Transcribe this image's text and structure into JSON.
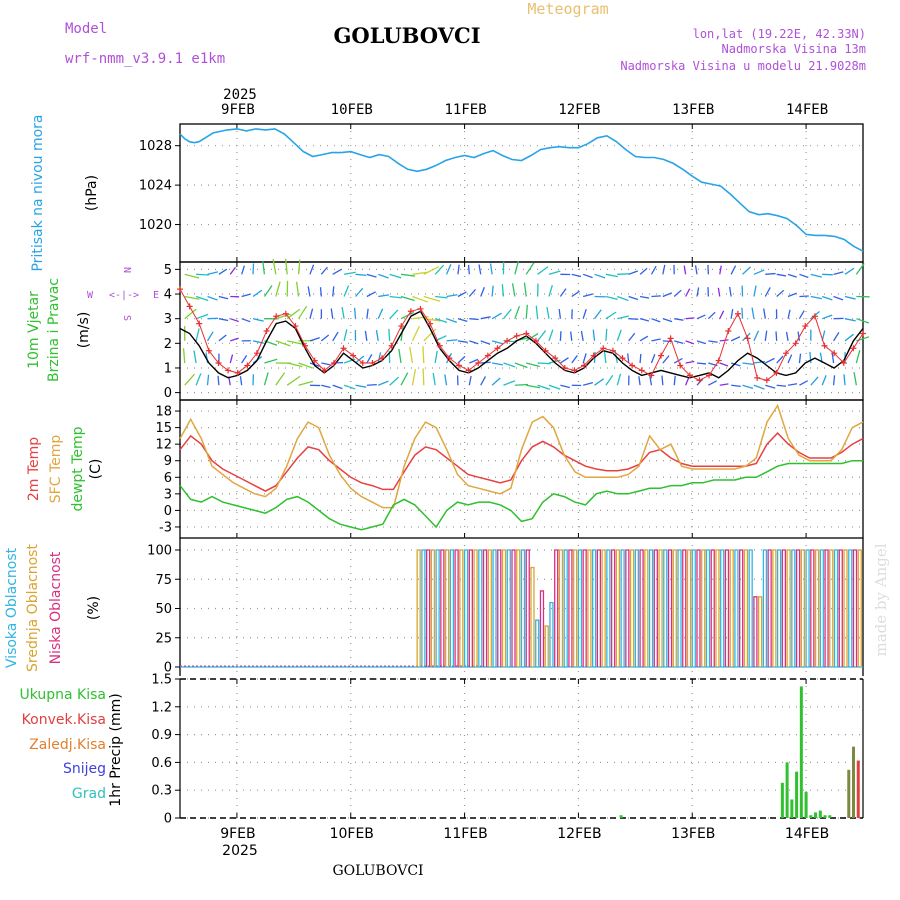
{
  "header": {
    "model_label": "Model",
    "model_name": "wrf-nmm_v3.9.1 e1km",
    "location": "GOLUBOVCI",
    "product": "Meteogram",
    "coords": "lon,lat (19.22E, 42.33N)",
    "elevation": "Nadmorska Visina 13m",
    "model_elevation": "Nadmorska Visina u modelu 21.9028m",
    "year": "2025",
    "footer_location": "GOLUBOVCI",
    "watermark": "made by Angel"
  },
  "colors": {
    "pressure": "#29a3e8",
    "temp_2m": "#e84040",
    "temp_sfc": "#e0a640",
    "dewpoint": "#2ec02e",
    "wind_obs": "#e83030",
    "wind_line": "#000000",
    "cloud_high": "#33b3e0",
    "cloud_mid": "#d9a430",
    "cloud_low": "#d83080",
    "precip_total": "#30c030",
    "precip_conv": "#e04040",
    "precip_frozen": "#e08030",
    "precip_snow": "#4040e0",
    "precip_grad": "#30c0c0",
    "purple_text": "#b050d8",
    "orange_text": "#e8c070",
    "panel_pressure_label": "#29a3e8",
    "panel_wind_label": "#30c030"
  },
  "chart_data": [
    {
      "type": "line",
      "panel": "pressure",
      "ylabel": "Pritisak na nivou mora",
      "unit": "(hPa)",
      "yticks": [
        "1028",
        "1024",
        "1020"
      ],
      "ylim": [
        1016.2,
        1030.2
      ],
      "x_unit": "hours since 8FEB 12:00",
      "x": [
        0,
        1,
        2,
        3,
        4,
        5,
        6,
        7,
        8,
        10,
        12,
        14,
        16,
        18,
        20,
        22,
        24,
        26,
        28,
        30,
        32,
        34,
        36,
        38,
        40,
        42,
        44,
        46,
        48,
        50,
        52,
        54,
        56,
        58,
        60,
        62,
        64,
        66,
        68,
        70,
        72,
        74,
        76,
        78,
        80,
        82,
        84,
        86,
        88,
        90,
        92,
        94,
        96,
        98,
        100,
        102,
        104,
        106,
        108,
        110,
        112,
        114,
        116,
        118,
        120,
        122,
        124,
        126,
        128,
        130,
        132,
        134,
        136,
        138,
        140,
        142,
        144
      ],
      "values": [
        1029.2,
        1028.7,
        1028.4,
        1028.3,
        1028.4,
        1028.7,
        1029.0,
        1029.3,
        1029.4,
        1029.6,
        1029.7,
        1029.5,
        1029.7,
        1029.6,
        1029.7,
        1029.2,
        1028.3,
        1027.4,
        1026.9,
        1027.1,
        1027.3,
        1027.3,
        1027.4,
        1027.1,
        1026.8,
        1027.1,
        1026.9,
        1026.2,
        1025.6,
        1025.4,
        1025.6,
        1026.0,
        1026.5,
        1026.8,
        1027.0,
        1026.8,
        1027.2,
        1027.5,
        1027.0,
        1026.6,
        1026.5,
        1027.0,
        1027.6,
        1027.8,
        1027.9,
        1027.8,
        1027.8,
        1028.2,
        1028.8,
        1029.0,
        1028.4,
        1027.6,
        1026.9,
        1026.8,
        1026.8,
        1026.6,
        1026.2,
        1025.6,
        1024.9,
        1024.3,
        1024.1,
        1023.9,
        1023.1,
        1022.2,
        1021.3,
        1021.0,
        1021.1,
        1020.9,
        1020.6,
        1019.9,
        1019.0,
        1018.9,
        1018.9,
        1018.8,
        1018.5,
        1017.8,
        1017.3
      ]
    },
    {
      "type": "line",
      "panel": "wind",
      "ylabel": "10m Vjetar Brzina i Pravac",
      "unit": "(m/s)",
      "compass": {
        "n": "N",
        "s": "S",
        "e": "E",
        "w": "W",
        "arrows": "<-|->"
      },
      "yticks": [
        "5",
        "4",
        "3",
        "2",
        "1",
        "0"
      ],
      "ylim": [
        -0.3,
        5.3
      ],
      "series": [
        {
          "values": [
            2.6,
            2.4,
            1.9,
            1.2,
            0.8,
            0.6,
            0.7,
            0.9,
            1.3,
            2.1,
            2.8,
            2.9,
            2.6,
            1.8,
            1.1,
            0.8,
            1.1,
            1.6,
            1.3,
            1.0,
            1.1,
            1.3,
            1.7,
            2.4,
            3.1,
            3.3,
            2.6,
            1.8,
            1.3,
            0.9,
            0.8,
            1.0,
            1.3,
            1.6,
            1.8,
            2.1,
            2.3,
            2.0,
            1.6,
            1.2,
            0.9,
            0.8,
            1.0,
            1.4,
            1.7,
            1.6,
            1.2,
            0.9,
            0.7,
            0.8,
            0.9,
            0.8,
            0.7,
            0.6,
            0.7,
            0.8,
            0.6,
            0.9,
            1.3,
            1.6,
            1.4,
            1.1,
            0.8,
            0.7,
            0.8,
            1.2,
            1.4,
            1.2,
            1.0,
            1.3,
            2.1,
            2.6
          ]
        },
        {
          "values": [
            4.2,
            3.5,
            2.8,
            1.7,
            1.2,
            0.9,
            0.8,
            1.1,
            1.6,
            2.5,
            3.1,
            3.2,
            2.7,
            1.9,
            1.3,
            0.9,
            1.2,
            1.8,
            1.5,
            1.2,
            1.2,
            1.4,
            1.9,
            2.7,
            3.3,
            3.4,
            2.8,
            1.9,
            1.4,
            1.1,
            0.9,
            1.2,
            1.5,
            1.8,
            2.1,
            2.3,
            2.4,
            2.1,
            1.7,
            1.4,
            1.0,
            0.9,
            1.1,
            1.5,
            1.8,
            1.7,
            1.4,
            1.1,
            0.9,
            0.7,
            1.5,
            2.2,
            1.1,
            0.7,
            0.5,
            0.7,
            1.3,
            2.5,
            3.2,
            2.2,
            0.6,
            0.5,
            0.8,
            1.6,
            2.0,
            2.7,
            3.1,
            1.9,
            1.6,
            1.2,
            1.8,
            2.4
          ]
        }
      ]
    },
    {
      "type": "line",
      "panel": "temperature",
      "ylabels": [
        "2m Temp",
        "SFC Temp",
        "dewpt Temp"
      ],
      "unit": "(C)",
      "yticks": [
        "18",
        "15",
        "12",
        "9",
        "6",
        "3",
        "0",
        "-3"
      ],
      "ylim": [
        -5,
        20
      ],
      "series": [
        {
          "name": "2m Temp",
          "values": [
            11,
            13.5,
            12,
            9,
            7.5,
            6.5,
            5.5,
            4.5,
            3.5,
            4.5,
            7,
            9.5,
            11.5,
            11,
            9,
            7.5,
            6,
            5,
            4.5,
            3.8,
            3.8,
            7,
            10,
            11.5,
            11,
            9.5,
            8,
            6.5,
            6,
            5.5,
            5,
            5.5,
            9,
            11.5,
            12.5,
            11.5,
            10,
            9,
            8,
            7.5,
            7.2,
            7.2,
            7.5,
            8.3,
            10.5,
            11,
            9.5,
            8.5,
            8,
            8,
            8,
            8,
            8,
            8,
            8.5,
            12,
            14,
            12,
            10.5,
            9.5,
            9.5,
            9.5,
            10.5,
            12,
            13
          ]
        },
        {
          "name": "SFC Temp",
          "values": [
            13,
            16.5,
            13,
            8,
            6.5,
            5,
            4,
            3,
            2.5,
            4,
            8,
            13,
            16,
            15,
            10,
            6.5,
            4,
            2.5,
            1.5,
            0.5,
            0.5,
            8,
            13,
            16,
            15,
            11,
            6.5,
            4.5,
            4,
            3.5,
            3,
            4,
            11,
            16,
            17,
            15,
            10,
            7,
            6,
            6,
            6,
            6,
            6.5,
            8,
            13.5,
            11,
            12,
            8,
            7.5,
            7.5,
            7.5,
            7.5,
            7.5,
            8,
            9.5,
            16,
            19,
            13,
            10,
            9,
            9,
            9,
            11,
            15,
            16
          ]
        },
        {
          "name": "dewpt Temp",
          "values": [
            4.5,
            2,
            1.5,
            2.5,
            1.5,
            1,
            0.5,
            0,
            -0.5,
            0.5,
            2,
            2.5,
            1.5,
            0,
            -1.5,
            -2.5,
            -3,
            -3.5,
            -3,
            -2.5,
            1,
            2,
            1,
            -1,
            -3,
            0,
            1.5,
            1,
            1.5,
            1.5,
            1,
            0,
            -2,
            -1.5,
            1.5,
            3,
            2.5,
            1.5,
            1,
            3,
            3.5,
            3,
            3,
            3.5,
            4,
            4,
            4.5,
            4.5,
            5,
            5,
            5.5,
            5.5,
            5.5,
            6,
            6,
            7,
            8,
            8.5,
            8.5,
            8.5,
            8.5,
            8.5,
            8.5,
            9,
            9
          ]
        }
      ]
    },
    {
      "type": "bar",
      "panel": "cloud",
      "ylabels": [
        "Visoka Oblacnost",
        "Srednja Oblacnost",
        "Niska Oblacnost"
      ],
      "unit": "(%)",
      "yticks": [
        "100",
        "75",
        "50",
        "25",
        "0"
      ],
      "ylim": [
        0,
        100
      ],
      "note": "high/mid/low cloud cover; near 0% until ~10FEB 14h, then alternating near 100%"
    },
    {
      "type": "bar",
      "panel": "precip",
      "ylabel": "1hr Precip (mm)",
      "legend": [
        "Ukupna Kisa",
        "Konvek.Kisa",
        "Zaledj.Kisa",
        "Snijeg",
        "Grad"
      ],
      "yticks": [
        "1.5",
        "1.2",
        "0.9",
        "0.6",
        "0.3",
        "0"
      ],
      "ylim": [
        0,
        1.5
      ],
      "x_unit": "hours since 8FEB 12:00",
      "x": [
        93,
        127,
        128,
        129,
        130,
        131,
        132,
        133,
        134,
        135,
        136,
        137,
        141,
        142,
        143
      ],
      "values": [
        0.03,
        0.38,
        0.6,
        0.2,
        0.5,
        1.42,
        0.28,
        0.03,
        0.06,
        0.08,
        0.03,
        0.03,
        0.52,
        0.77,
        0.62
      ]
    }
  ],
  "x_axis": {
    "days": [
      "9FEB",
      "10FEB",
      "11FEB",
      "12FEB",
      "13FEB",
      "14FEB"
    ],
    "year": "2025"
  }
}
